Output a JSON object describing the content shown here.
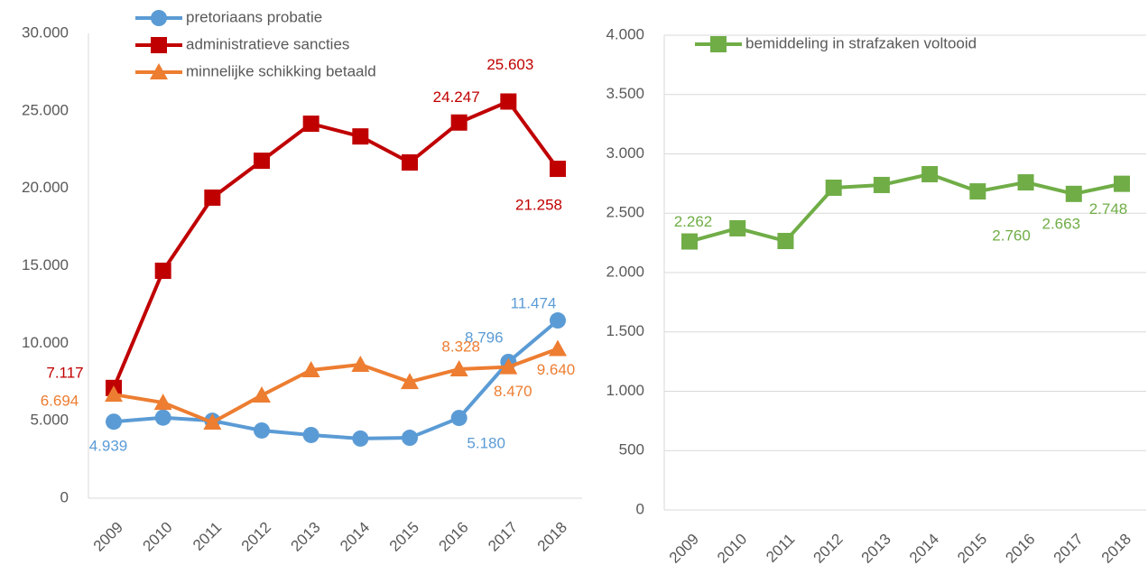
{
  "chart_data": [
    {
      "type": "line",
      "categories": [
        "2009",
        "2010",
        "2011",
        "2012",
        "2013",
        "2014",
        "2015",
        "2016",
        "2017",
        "2018"
      ],
      "series": [
        {
          "name": "pretoriaans probatie",
          "color": "#5b9bd5",
          "marker": "circle",
          "values": [
            4939,
            5200,
            5000,
            4370,
            4080,
            3850,
            3900,
            5180,
            8796,
            11474
          ],
          "value_labels": [
            "4.939",
            null,
            null,
            null,
            null,
            null,
            null,
            "5.180",
            "8.796",
            "11.474"
          ]
        },
        {
          "name": "administratieve sancties",
          "color": "#c00000",
          "marker": "square",
          "values": [
            7117,
            14680,
            19400,
            21780,
            24170,
            23350,
            21670,
            24247,
            25603,
            21258
          ],
          "value_labels": [
            "7.117",
            null,
            null,
            null,
            null,
            null,
            null,
            "24.247",
            "25.603",
            "21.258"
          ]
        },
        {
          "name": "minnelijke schikking betaald",
          "color": "#ed7d31",
          "marker": "triangle",
          "values": [
            6694,
            6170,
            4890,
            6640,
            8270,
            8620,
            7510,
            8328,
            8470,
            9640
          ],
          "value_labels": [
            "6.694",
            null,
            null,
            null,
            null,
            null,
            null,
            "8.328",
            "8.470",
            "9.640"
          ]
        }
      ],
      "ylim": [
        0,
        30000
      ],
      "yticks": [
        0,
        {
          "value": 5000,
          "label": "5.000"
        },
        {
          "value": 10000,
          "label": "10.000"
        },
        {
          "value": 15000,
          "label": "15.000"
        },
        {
          "value": 20000,
          "label": "20.000"
        },
        {
          "value": 25000,
          "label": "25.000"
        },
        {
          "value": 30000,
          "label": "30.000"
        }
      ],
      "grid": false,
      "legend": "top-left"
    },
    {
      "type": "line",
      "categories": [
        "2009",
        "2010",
        "2011",
        "2012",
        "2013",
        "2014",
        "2015",
        "2016",
        "2017",
        "2018"
      ],
      "series": [
        {
          "name": "bemiddeling in strafzaken voltooid",
          "color": "#70ad47",
          "marker": "square",
          "values": [
            2262,
            2373,
            2266,
            2715,
            2738,
            2829,
            2684,
            2760,
            2663,
            2748
          ],
          "value_labels": [
            "2.262",
            null,
            null,
            null,
            null,
            null,
            null,
            "2.760",
            "2.663",
            "2.748"
          ]
        }
      ],
      "ylim": [
        0,
        4000
      ],
      "yticks": [
        0,
        500,
        {
          "value": 1000,
          "label": "1.000"
        },
        {
          "value": 1500,
          "label": "1.500"
        },
        {
          "value": 2000,
          "label": "2.000"
        },
        {
          "value": 2500,
          "label": "2.500"
        },
        {
          "value": 3000,
          "label": "3.000"
        },
        {
          "value": 3500,
          "label": "3.500"
        },
        {
          "value": 4000,
          "label": "4.000"
        }
      ],
      "grid": true,
      "legend": "top"
    }
  ]
}
